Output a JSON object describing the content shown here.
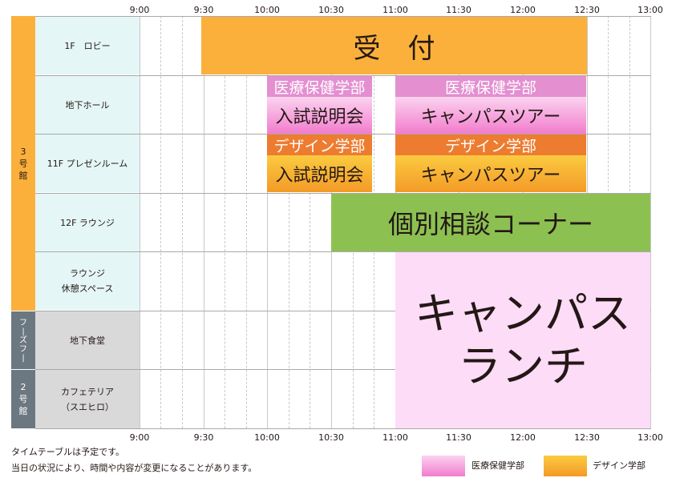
{
  "times": [
    "9:00",
    "9:30",
    "10:00",
    "10:30",
    "11:00",
    "11:30",
    "12:00",
    "12:30",
    "13:00"
  ],
  "buildings": {
    "b3": "3\n号\n館",
    "food": "フ\n|\nズ\nフ\n|",
    "b2": "2\n号\n館"
  },
  "rooms": [
    "1F　ロビー",
    "地下ホール",
    "11F プレゼンルーム",
    "12F ラウンジ",
    "ラウンジ\n休憩スペース",
    "地下食堂",
    "カフェテリア\n（スエヒロ）"
  ],
  "events": {
    "reception": "受　付",
    "medical_label": "医療保健学部",
    "design_label": "デザイン学部",
    "exam_info": "入試説明会",
    "campus_tour": "キャンパスツアー",
    "consult": "個別相談コーナー",
    "lunch": "キャンパス\nランチ"
  },
  "footer": {
    "note1": "タイムテーブルは予定です。",
    "note2": "当日の状況により、時間や内容が変更になることがあります。"
  },
  "legend": {
    "medical": "医療保健学部",
    "design": "デザイン学部"
  },
  "colors": {
    "reception": "#fbb03b",
    "consult": "#8cc152",
    "lunch": "#fcdcf7",
    "medical_label": "#e38fd0",
    "design_label": "#ed7c30",
    "building3": "#fbb03b",
    "building2": "#6b7781"
  }
}
